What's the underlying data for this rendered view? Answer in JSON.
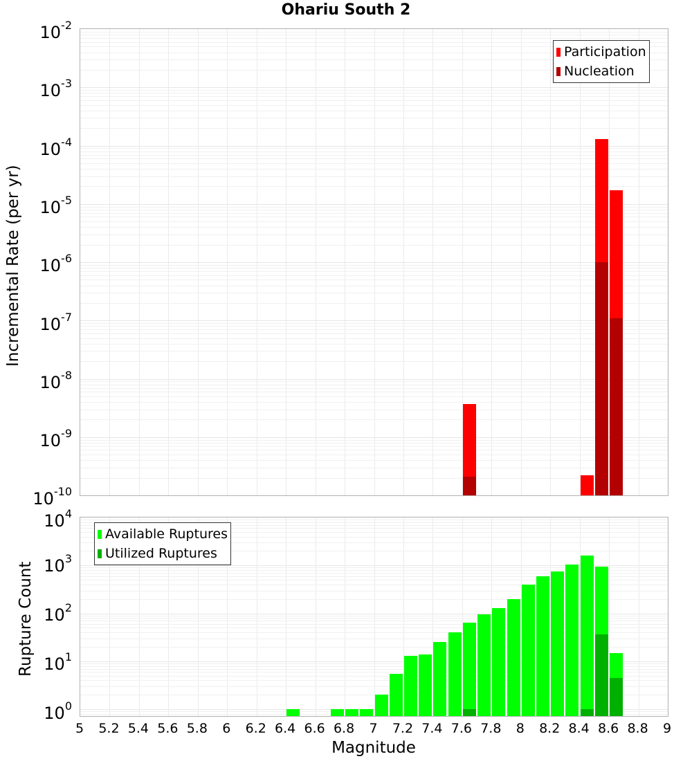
{
  "title": "Ohariu South 2",
  "colors": {
    "participation": "#ff0000",
    "nucleation": "#b30000",
    "available": "#00ff00",
    "utilized": "#00b000",
    "grid": "#ebebeb",
    "frame": "#b0b0b0"
  },
  "top_chart": {
    "ylabel": "Incremental Rate (per yr)",
    "yticks": [
      {
        "base": "10",
        "exp": "-2"
      },
      {
        "base": "10",
        "exp": "-3"
      },
      {
        "base": "10",
        "exp": "-4"
      },
      {
        "base": "10",
        "exp": "-5"
      },
      {
        "base": "10",
        "exp": "-6"
      },
      {
        "base": "10",
        "exp": "-7"
      },
      {
        "base": "10",
        "exp": "-8"
      },
      {
        "base": "10",
        "exp": "-9"
      },
      {
        "base": "10",
        "exp": "-10"
      }
    ],
    "legend": [
      {
        "label": "Participation"
      },
      {
        "label": "Nucleation"
      }
    ]
  },
  "bottom_chart": {
    "ylabel": "Rupture Count",
    "yticks": [
      {
        "base": "10",
        "exp": "4"
      },
      {
        "base": "10",
        "exp": "3"
      },
      {
        "base": "10",
        "exp": "2"
      },
      {
        "base": "10",
        "exp": "1"
      },
      {
        "base": "10",
        "exp": "0"
      }
    ],
    "legend": [
      {
        "label": "Available Ruptures"
      },
      {
        "label": "Utilized Ruptures"
      }
    ]
  },
  "xlabel": "Magnitude",
  "xticks": [
    "5",
    "5.2",
    "5.4",
    "5.6",
    "5.8",
    "6",
    "6.2",
    "6.4",
    "6.6",
    "6.8",
    "7",
    "7.2",
    "7.4",
    "7.6",
    "7.8",
    "8",
    "8.2",
    "8.4",
    "8.6",
    "8.8",
    "9"
  ],
  "chart_data": [
    {
      "type": "bar",
      "title": "Ohariu South 2",
      "xlabel": "Magnitude",
      "ylabel": "Incremental Rate (per yr)",
      "yscale": "log",
      "xlim": [
        5,
        9
      ],
      "ylim": [
        1e-10,
        0.01
      ],
      "grid": true,
      "legend_position": "upper right",
      "x": [
        7.65,
        8.45,
        8.55,
        8.65
      ],
      "series": [
        {
          "name": "Participation",
          "color": "#ff0000",
          "values": [
            3.7e-09,
            2.2e-10,
            0.00013,
            1.7e-05
          ]
        },
        {
          "name": "Nucleation",
          "color": "#b30000",
          "values": [
            2.1e-10,
            null,
            1e-06,
            1.1e-07
          ]
        }
      ]
    },
    {
      "type": "bar",
      "title": "",
      "xlabel": "Magnitude",
      "ylabel": "Rupture Count",
      "yscale": "log",
      "xlim": [
        5,
        9
      ],
      "ylim": [
        0.72,
        10000.0
      ],
      "grid": true,
      "legend_position": "upper left",
      "x": [
        6.45,
        6.75,
        6.85,
        6.95,
        7.05,
        7.15,
        7.25,
        7.35,
        7.45,
        7.55,
        7.65,
        7.75,
        7.85,
        7.95,
        8.05,
        8.15,
        8.25,
        8.35,
        8.45,
        8.55,
        8.65
      ],
      "series": [
        {
          "name": "Available Ruptures",
          "color": "#00ff00",
          "values": [
            1,
            1,
            1,
            1,
            2,
            5.5,
            13,
            14,
            25,
            40,
            65,
            95,
            130,
            200,
            400,
            600,
            750,
            1050,
            1600,
            950,
            15
          ]
        },
        {
          "name": "Utilized Ruptures",
          "color": "#00b000",
          "values": [
            null,
            null,
            null,
            null,
            null,
            null,
            null,
            null,
            null,
            null,
            1,
            null,
            null,
            null,
            null,
            null,
            null,
            null,
            1,
            36,
            4.5
          ]
        }
      ]
    }
  ]
}
